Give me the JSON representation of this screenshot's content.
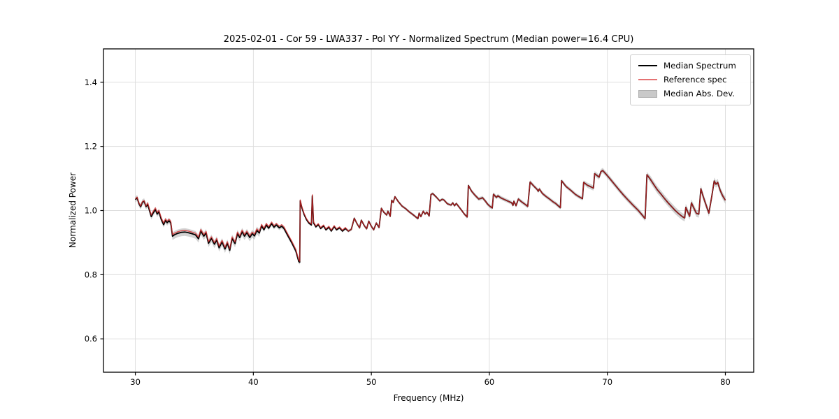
{
  "chart_data": {
    "type": "line",
    "title": "2025-02-01 - Cor 59 - LWA337 - Pol YY - Normalized Spectrum (Median power=16.4 CPU)",
    "xlabel": "Frequency (MHz)",
    "ylabel": "Normalized Power",
    "xlim": [
      27.3,
      82.4
    ],
    "ylim": [
      0.496,
      1.504
    ],
    "xticks": [
      30,
      40,
      50,
      60,
      70,
      80
    ],
    "xtick_labels": [
      "30",
      "40",
      "50",
      "60",
      "70",
      "80"
    ],
    "yticks": [
      0.6,
      0.8,
      1.0,
      1.2,
      1.4
    ],
    "ytick_labels": [
      "0.6",
      "0.8",
      "1.0",
      "1.2",
      "1.4"
    ],
    "grid": true,
    "legend_position": "upper right",
    "colors": {
      "median_line": "#000000",
      "reference_line": "#d62728",
      "reference_opacity": 0.75,
      "mad_band": "#8c8c8c",
      "mad_band_opacity": 0.38,
      "grid": "#dcdcdc",
      "spine": "#000000",
      "background": "#ffffff"
    },
    "series_names": [
      "Median Spectrum",
      "Reference spec",
      "Median Abs. Dev."
    ],
    "points": [
      [
        30.0,
        1.034
      ],
      [
        30.15,
        1.04
      ],
      [
        30.3,
        1.022
      ],
      [
        30.45,
        1.012
      ],
      [
        30.6,
        1.026
      ],
      [
        30.75,
        1.029
      ],
      [
        30.9,
        1.012
      ],
      [
        31.05,
        1.019
      ],
      [
        31.2,
        1.0
      ],
      [
        31.35,
        0.981
      ],
      [
        31.5,
        0.992
      ],
      [
        31.7,
        1.003
      ],
      [
        31.85,
        0.989
      ],
      [
        32.0,
        0.996
      ],
      [
        32.2,
        0.972
      ],
      [
        32.4,
        0.956
      ],
      [
        32.55,
        0.969
      ],
      [
        32.7,
        0.962
      ],
      [
        32.85,
        0.968
      ],
      [
        33.0,
        0.962
      ],
      [
        33.15,
        0.92
      ],
      [
        33.35,
        0.925
      ],
      [
        33.6,
        0.929
      ],
      [
        33.9,
        0.932
      ],
      [
        34.2,
        0.933
      ],
      [
        34.5,
        0.931
      ],
      [
        34.8,
        0.928
      ],
      [
        35.1,
        0.924
      ],
      [
        35.35,
        0.912
      ],
      [
        35.55,
        0.936
      ],
      [
        35.8,
        0.92
      ],
      [
        36.0,
        0.93
      ],
      [
        36.2,
        0.898
      ],
      [
        36.45,
        0.913
      ],
      [
        36.7,
        0.895
      ],
      [
        36.9,
        0.908
      ],
      [
        37.1,
        0.884
      ],
      [
        37.35,
        0.902
      ],
      [
        37.6,
        0.88
      ],
      [
        37.8,
        0.898
      ],
      [
        38.0,
        0.876
      ],
      [
        38.2,
        0.913
      ],
      [
        38.45,
        0.897
      ],
      [
        38.65,
        0.928
      ],
      [
        38.85,
        0.916
      ],
      [
        39.05,
        0.934
      ],
      [
        39.25,
        0.92
      ],
      [
        39.45,
        0.931
      ],
      [
        39.7,
        0.916
      ],
      [
        39.9,
        0.928
      ],
      [
        40.1,
        0.921
      ],
      [
        40.3,
        0.938
      ],
      [
        40.5,
        0.93
      ],
      [
        40.7,
        0.952
      ],
      [
        40.9,
        0.94
      ],
      [
        41.1,
        0.955
      ],
      [
        41.3,
        0.945
      ],
      [
        41.55,
        0.959
      ],
      [
        41.75,
        0.948
      ],
      [
        41.95,
        0.955
      ],
      [
        42.2,
        0.946
      ],
      [
        42.4,
        0.951
      ],
      [
        42.6,
        0.944
      ],
      [
        42.95,
        0.92
      ],
      [
        43.25,
        0.9
      ],
      [
        43.6,
        0.874
      ],
      [
        43.85,
        0.841
      ],
      [
        43.93,
        0.839
      ],
      [
        43.97,
        1.03
      ],
      [
        44.1,
        1.01
      ],
      [
        44.3,
        0.988
      ],
      [
        44.5,
        0.972
      ],
      [
        44.7,
        0.961
      ],
      [
        44.92,
        0.955
      ],
      [
        45.0,
        1.046
      ],
      [
        45.1,
        0.962
      ],
      [
        45.3,
        0.949
      ],
      [
        45.5,
        0.956
      ],
      [
        45.7,
        0.944
      ],
      [
        45.95,
        0.952
      ],
      [
        46.15,
        0.94
      ],
      [
        46.4,
        0.948
      ],
      [
        46.6,
        0.936
      ],
      [
        46.85,
        0.95
      ],
      [
        47.05,
        0.94
      ],
      [
        47.3,
        0.946
      ],
      [
        47.55,
        0.936
      ],
      [
        47.8,
        0.944
      ],
      [
        48.05,
        0.936
      ],
      [
        48.3,
        0.941
      ],
      [
        48.55,
        0.976
      ],
      [
        48.8,
        0.958
      ],
      [
        49.0,
        0.946
      ],
      [
        49.15,
        0.97
      ],
      [
        49.4,
        0.953
      ],
      [
        49.6,
        0.943
      ],
      [
        49.78,
        0.967
      ],
      [
        50.0,
        0.951
      ],
      [
        50.2,
        0.94
      ],
      [
        50.42,
        0.961
      ],
      [
        50.65,
        0.947
      ],
      [
        50.85,
        1.007
      ],
      [
        51.05,
        0.995
      ],
      [
        51.3,
        0.986
      ],
      [
        51.4,
        0.998
      ],
      [
        51.6,
        0.982
      ],
      [
        51.72,
        1.032
      ],
      [
        51.85,
        1.025
      ],
      [
        52.0,
        1.043
      ],
      [
        52.3,
        1.027
      ],
      [
        52.6,
        1.014
      ],
      [
        52.9,
        1.006
      ],
      [
        53.2,
        0.996
      ],
      [
        53.5,
        0.988
      ],
      [
        53.8,
        0.979
      ],
      [
        53.95,
        0.975
      ],
      [
        54.05,
        0.992
      ],
      [
        54.2,
        0.981
      ],
      [
        54.4,
        0.998
      ],
      [
        54.55,
        0.989
      ],
      [
        54.7,
        0.995
      ],
      [
        54.9,
        0.983
      ],
      [
        55.05,
        1.05
      ],
      [
        55.2,
        1.053
      ],
      [
        55.5,
        1.042
      ],
      [
        55.8,
        1.03
      ],
      [
        56.0,
        1.035
      ],
      [
        56.15,
        1.033
      ],
      [
        56.45,
        1.021
      ],
      [
        56.75,
        1.017
      ],
      [
        56.9,
        1.024
      ],
      [
        57.05,
        1.015
      ],
      [
        57.2,
        1.022
      ],
      [
        57.6,
        1.003
      ],
      [
        57.9,
        0.988
      ],
      [
        58.12,
        0.98
      ],
      [
        58.22,
        1.078
      ],
      [
        58.5,
        1.06
      ],
      [
        58.8,
        1.047
      ],
      [
        59.1,
        1.036
      ],
      [
        59.3,
        1.038
      ],
      [
        59.42,
        1.04
      ],
      [
        59.65,
        1.03
      ],
      [
        59.85,
        1.02
      ],
      [
        60.05,
        1.013
      ],
      [
        60.25,
        1.008
      ],
      [
        60.35,
        1.051
      ],
      [
        60.6,
        1.041
      ],
      [
        60.72,
        1.046
      ],
      [
        61.0,
        1.039
      ],
      [
        61.3,
        1.034
      ],
      [
        61.6,
        1.029
      ],
      [
        61.9,
        1.024
      ],
      [
        62.0,
        1.016
      ],
      [
        62.08,
        1.029
      ],
      [
        62.26,
        1.015
      ],
      [
        62.46,
        1.036
      ],
      [
        62.7,
        1.028
      ],
      [
        63.0,
        1.02
      ],
      [
        63.25,
        1.013
      ],
      [
        63.45,
        1.089
      ],
      [
        63.75,
        1.077
      ],
      [
        64.05,
        1.066
      ],
      [
        64.14,
        1.06
      ],
      [
        64.24,
        1.067
      ],
      [
        64.5,
        1.053
      ],
      [
        64.8,
        1.044
      ],
      [
        65.13,
        1.035
      ],
      [
        65.4,
        1.027
      ],
      [
        65.62,
        1.022
      ],
      [
        66.02,
        1.009
      ],
      [
        66.12,
        1.093
      ],
      [
        66.5,
        1.075
      ],
      [
        66.9,
        1.063
      ],
      [
        67.3,
        1.05
      ],
      [
        67.6,
        1.043
      ],
      [
        67.89,
        1.037
      ],
      [
        67.99,
        1.088
      ],
      [
        68.3,
        1.079
      ],
      [
        68.6,
        1.074
      ],
      [
        68.82,
        1.07
      ],
      [
        68.92,
        1.115
      ],
      [
        69.1,
        1.11
      ],
      [
        69.3,
        1.104
      ],
      [
        69.45,
        1.121
      ],
      [
        69.6,
        1.125
      ],
      [
        69.9,
        1.113
      ],
      [
        70.2,
        1.1
      ],
      [
        70.6,
        1.082
      ],
      [
        71.0,
        1.064
      ],
      [
        71.4,
        1.047
      ],
      [
        71.8,
        1.031
      ],
      [
        72.2,
        1.016
      ],
      [
        72.6,
        1.001
      ],
      [
        72.9,
        0.988
      ],
      [
        73.2,
        0.975
      ],
      [
        73.35,
        1.112
      ],
      [
        73.65,
        1.097
      ],
      [
        73.95,
        1.08
      ],
      [
        74.25,
        1.064
      ],
      [
        74.55,
        1.051
      ],
      [
        74.85,
        1.037
      ],
      [
        75.15,
        1.024
      ],
      [
        75.45,
        1.012
      ],
      [
        75.75,
        1.0
      ],
      [
        76.05,
        0.99
      ],
      [
        76.35,
        0.981
      ],
      [
        76.55,
        0.977
      ],
      [
        76.65,
        1.01
      ],
      [
        76.82,
        0.995
      ],
      [
        76.97,
        0.982
      ],
      [
        77.12,
        1.024
      ],
      [
        77.32,
        1.008
      ],
      [
        77.55,
        0.991
      ],
      [
        77.75,
        0.989
      ],
      [
        77.92,
        1.068
      ],
      [
        78.15,
        1.04
      ],
      [
        78.4,
        1.013
      ],
      [
        78.6,
        0.992
      ],
      [
        78.85,
        1.045
      ],
      [
        79.05,
        1.092
      ],
      [
        79.2,
        1.082
      ],
      [
        79.35,
        1.088
      ],
      [
        79.55,
        1.064
      ],
      [
        79.75,
        1.047
      ],
      [
        80.0,
        1.032
      ]
    ],
    "mad_segments": [
      [
        33,
        0.009
      ],
      [
        40.5,
        0.012
      ],
      [
        44,
        0.007
      ],
      [
        58,
        0.0045
      ],
      [
        68,
        0.006
      ],
      [
        73.4,
        0.008
      ],
      [
        82.5,
        0.011
      ]
    ],
    "reference_delta_segments": [
      [
        31,
        0.002
      ],
      [
        43.9,
        0.005
      ],
      [
        48,
        0.003
      ],
      [
        82.5,
        0.0
      ]
    ]
  },
  "legend": {
    "items": [
      {
        "label": "Median Spectrum",
        "swatch": "line",
        "color": "#000000"
      },
      {
        "label": "Reference spec",
        "swatch": "line",
        "color": "#e57273"
      },
      {
        "label": "Median Abs. Dev.",
        "swatch": "patch",
        "color": "#c9c9c9",
        "border": "#aeaeae"
      }
    ]
  }
}
